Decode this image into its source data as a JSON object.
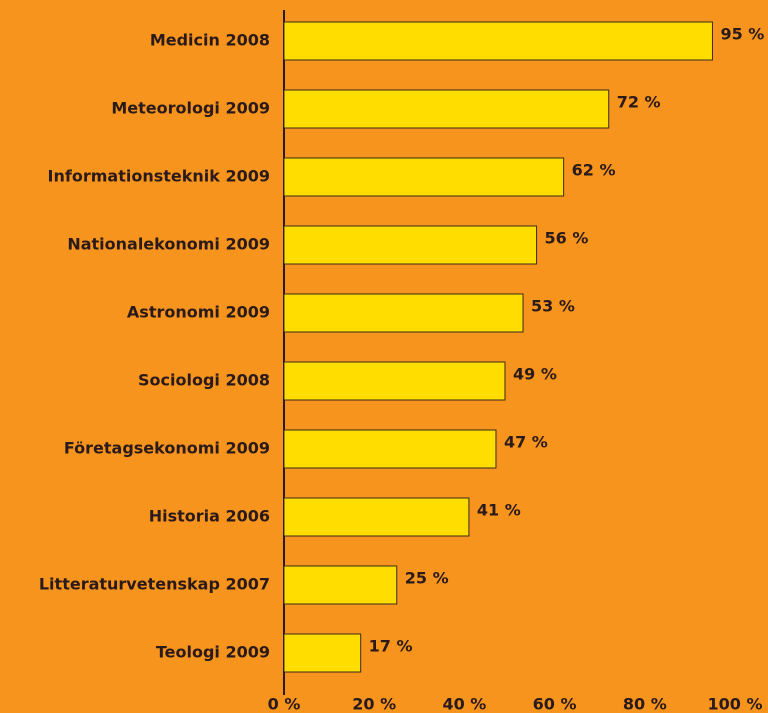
{
  "chart_data": {
    "type": "bar",
    "orientation": "horizontal",
    "categories": [
      "Medicin 2008",
      "Meteorologi 2009",
      "Informationsteknik 2009",
      "Nationalekonomi 2009",
      "Astronomi 2009",
      "Sociologi 2008",
      "Företagsekonomi 2009",
      "Historia 2006",
      "Litteraturvetenskap 2007",
      "Teologi 2009"
    ],
    "values": [
      95,
      72,
      62,
      56,
      53,
      49,
      47,
      41,
      25,
      17
    ],
    "value_labels": [
      "95 %",
      "72 %",
      "62 %",
      "56 %",
      "53 %",
      "49 %",
      "47 %",
      "41 %",
      "25 %",
      "17 %"
    ],
    "color": "#ffdd00",
    "background": "#f7941d",
    "xlim": [
      0,
      100
    ],
    "xticks": [
      {
        "value": 0,
        "label": "0 %"
      },
      {
        "value": 20,
        "label": "20 %"
      },
      {
        "value": 40,
        "label": "40 %"
      },
      {
        "value": 60,
        "label": "60 %"
      },
      {
        "value": 80,
        "label": "80 %"
      },
      {
        "value": 100,
        "label": "100 %"
      }
    ],
    "grid": false
  }
}
